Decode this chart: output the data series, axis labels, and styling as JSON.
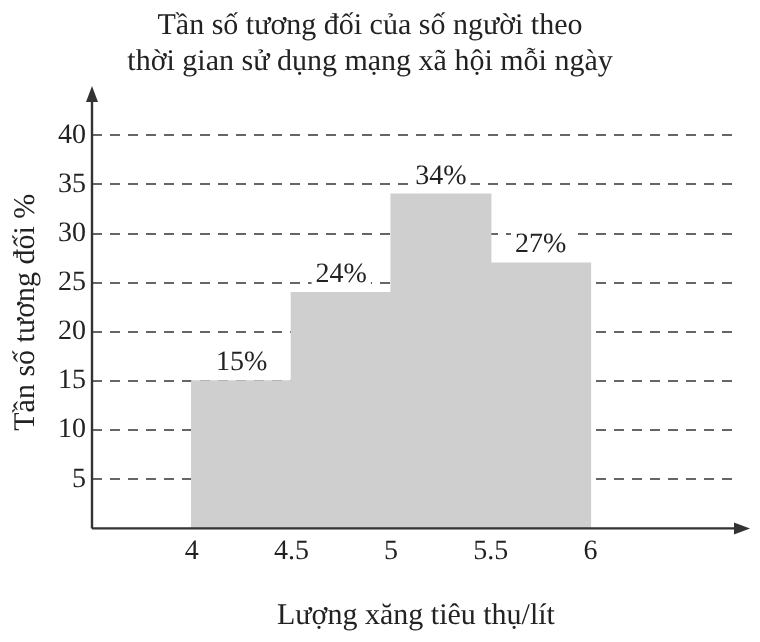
{
  "chart_data": {
    "type": "histogram",
    "title": "Tần số tương đối của số người theo\nthời gian sử dụng mạng xã hội mỗi ngày",
    "xlabel": "Lượng xăng tiêu thụ/lít",
    "ylabel": "Tần số tương đối %",
    "bins": [
      4,
      4.5,
      5,
      5.5,
      6
    ],
    "values": [
      15,
      24,
      34,
      27
    ],
    "value_labels": [
      "15%",
      "24%",
      "34%",
      "27%"
    ],
    "color": "#cfcfcf",
    "xlim": [
      3.5,
      6.75
    ],
    "xticks": [
      4,
      4.5,
      5,
      5.5,
      6
    ],
    "ylim": [
      0,
      44
    ],
    "yticks": [
      5,
      10,
      15,
      20,
      25,
      30,
      35,
      40
    ],
    "grid": "y",
    "legend": false
  }
}
